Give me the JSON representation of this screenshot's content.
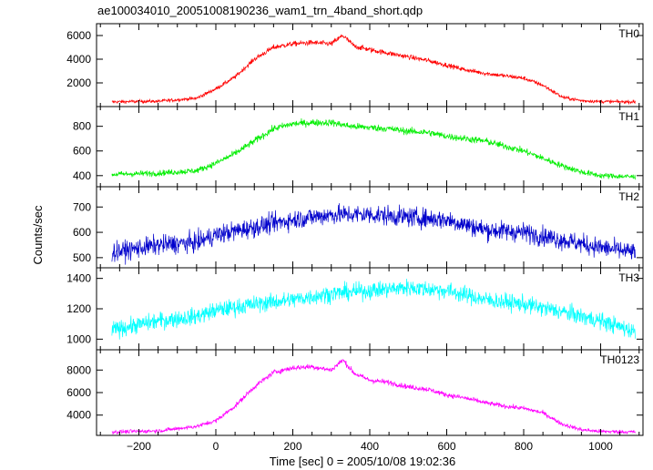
{
  "chart_data": {
    "type": "line",
    "title": "ae100034010_20051008190236_wam1_trn_4band_short.qdp",
    "xlabel": "Time [sec] 0 = 2005/10/08 19:02:36",
    "ylabel": "Counts/sec",
    "xlim": [
      -310,
      1110
    ],
    "xticks": [
      "−200",
      "0",
      "200",
      "400",
      "600",
      "800",
      "1000"
    ],
    "xtick_values": [
      -200,
      0,
      200,
      400,
      600,
      800,
      1000
    ],
    "grid": false,
    "panels": [
      {
        "name": "TH0",
        "color": "#ff0000",
        "ylim": [
          0,
          7000
        ],
        "yticks": [
          2000,
          4000,
          6000
        ],
        "ytick_labels": [
          "2000",
          "4000",
          "6000"
        ],
        "noise": 220,
        "points": [
          [
            -270,
            400
          ],
          [
            -150,
            450
          ],
          [
            -50,
            700
          ],
          [
            0,
            1500
          ],
          [
            50,
            2500
          ],
          [
            100,
            4000
          ],
          [
            150,
            5000
          ],
          [
            200,
            5300
          ],
          [
            250,
            5400
          ],
          [
            300,
            5300
          ],
          [
            330,
            6000
          ],
          [
            360,
            5100
          ],
          [
            400,
            4800
          ],
          [
            450,
            4500
          ],
          [
            500,
            4200
          ],
          [
            550,
            3900
          ],
          [
            600,
            3500
          ],
          [
            650,
            3100
          ],
          [
            700,
            2800
          ],
          [
            750,
            2600
          ],
          [
            800,
            2400
          ],
          [
            850,
            1800
          ],
          [
            900,
            800
          ],
          [
            950,
            500
          ],
          [
            1000,
            420
          ],
          [
            1090,
            400
          ]
        ]
      },
      {
        "name": "TH1",
        "color": "#00ee00",
        "ylim": [
          310,
          960
        ],
        "yticks": [
          400,
          600,
          800
        ],
        "ytick_labels": [
          "400",
          "600",
          "800"
        ],
        "noise": 28,
        "points": [
          [
            -270,
            410
          ],
          [
            -150,
            420
          ],
          [
            -50,
            440
          ],
          [
            0,
            500
          ],
          [
            50,
            580
          ],
          [
            100,
            680
          ],
          [
            150,
            780
          ],
          [
            200,
            820
          ],
          [
            250,
            830
          ],
          [
            300,
            830
          ],
          [
            350,
            800
          ],
          [
            400,
            790
          ],
          [
            450,
            780
          ],
          [
            500,
            760
          ],
          [
            550,
            750
          ],
          [
            600,
            720
          ],
          [
            650,
            700
          ],
          [
            700,
            680
          ],
          [
            750,
            640
          ],
          [
            800,
            600
          ],
          [
            850,
            540
          ],
          [
            900,
            480
          ],
          [
            950,
            430
          ],
          [
            1000,
            400
          ],
          [
            1090,
            390
          ]
        ]
      },
      {
        "name": "TH2",
        "color": "#0000cc",
        "ylim": [
          460,
          780
        ],
        "yticks": [
          500,
          600,
          700
        ],
        "ytick_labels": [
          "500",
          "600",
          "700"
        ],
        "noise": 38,
        "points": [
          [
            -270,
            520
          ],
          [
            -150,
            550
          ],
          [
            -50,
            560
          ],
          [
            0,
            590
          ],
          [
            100,
            620
          ],
          [
            200,
            650
          ],
          [
            300,
            670
          ],
          [
            400,
            670
          ],
          [
            500,
            660
          ],
          [
            600,
            650
          ],
          [
            700,
            610
          ],
          [
            800,
            600
          ],
          [
            900,
            570
          ],
          [
            1000,
            540
          ],
          [
            1090,
            520
          ]
        ]
      },
      {
        "name": "TH3",
        "color": "#00ffff",
        "ylim": [
          930,
          1470
        ],
        "yticks": [
          1000,
          1200,
          1400
        ],
        "ytick_labels": [
          "1000",
          "1200",
          "1400"
        ],
        "noise": 55,
        "points": [
          [
            -270,
            1060
          ],
          [
            -150,
            1120
          ],
          [
            -50,
            1150
          ],
          [
            0,
            1190
          ],
          [
            100,
            1230
          ],
          [
            200,
            1260
          ],
          [
            300,
            1300
          ],
          [
            400,
            1320
          ],
          [
            500,
            1340
          ],
          [
            600,
            1320
          ],
          [
            700,
            1260
          ],
          [
            800,
            1230
          ],
          [
            900,
            1180
          ],
          [
            1000,
            1120
          ],
          [
            1090,
            1050
          ]
        ]
      },
      {
        "name": "TH0123",
        "color": "#ff00ff",
        "ylim": [
          2200,
          9800
        ],
        "yticks": [
          4000,
          6000,
          8000
        ],
        "ytick_labels": [
          "4000",
          "6000",
          "8000"
        ],
        "noise": 230,
        "points": [
          [
            -270,
            2500
          ],
          [
            -150,
            2600
          ],
          [
            -50,
            3000
          ],
          [
            0,
            3500
          ],
          [
            50,
            4800
          ],
          [
            100,
            6500
          ],
          [
            150,
            7800
          ],
          [
            200,
            8200
          ],
          [
            250,
            8300
          ],
          [
            300,
            8000
          ],
          [
            330,
            8900
          ],
          [
            360,
            7700
          ],
          [
            400,
            7100
          ],
          [
            450,
            6900
          ],
          [
            500,
            6500
          ],
          [
            550,
            6300
          ],
          [
            600,
            5800
          ],
          [
            650,
            5500
          ],
          [
            700,
            5100
          ],
          [
            750,
            4800
          ],
          [
            800,
            4600
          ],
          [
            850,
            4200
          ],
          [
            900,
            3200
          ],
          [
            950,
            2700
          ],
          [
            1000,
            2550
          ],
          [
            1090,
            2500
          ]
        ]
      }
    ]
  }
}
